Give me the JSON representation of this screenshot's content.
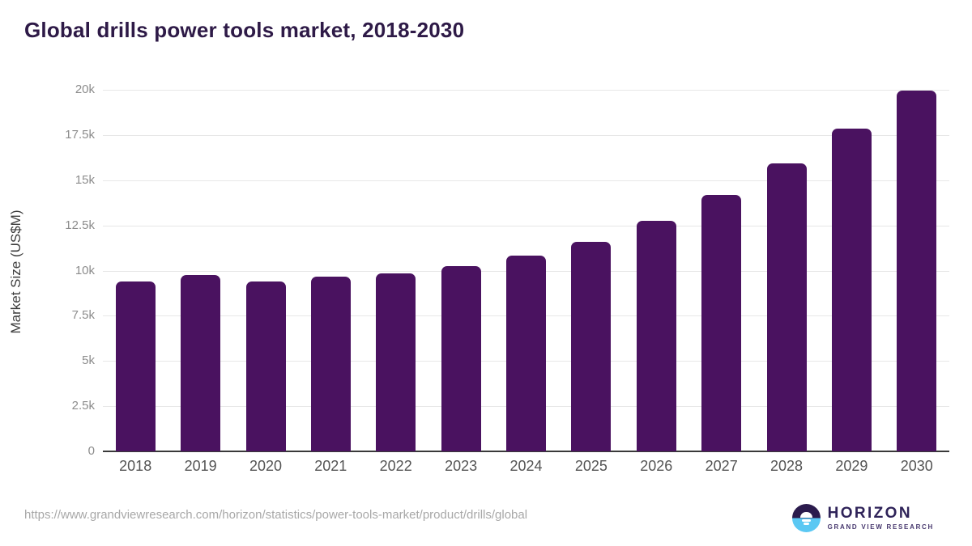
{
  "page": {
    "title": "Global drills power tools market, 2018-2030"
  },
  "chart_data": {
    "type": "bar",
    "title": "Global drills power tools market, 2018-2030",
    "xlabel": "",
    "ylabel": "Market Size (US$M)",
    "categories": [
      "2018",
      "2019",
      "2020",
      "2021",
      "2022",
      "2023",
      "2024",
      "2025",
      "2026",
      "2027",
      "2028",
      "2029",
      "2030"
    ],
    "values": [
      9400,
      9750,
      9400,
      9650,
      9850,
      10250,
      10850,
      11600,
      12750,
      14200,
      15950,
      17850,
      19950
    ],
    "ylim": [
      0,
      20000
    ],
    "yticks": [
      0,
      2500,
      5000,
      7500,
      10000,
      12500,
      15000,
      17500,
      20000
    ],
    "ytick_labels": [
      "0",
      "2.5k",
      "5k",
      "7.5k",
      "10k",
      "12.5k",
      "15k",
      "17.5k",
      "20k"
    ],
    "grid": true,
    "legend": false,
    "bar_color": "#4A1260"
  },
  "footer": {
    "source_url": "https://www.grandviewresearch.com/horizon/statistics/power-tools-market/product/drills/global",
    "logo": {
      "brand": "HORIZON",
      "subtext": "GRAND VIEW RESEARCH"
    }
  },
  "colors": {
    "title_text": "#2E1A47",
    "bar": "#4A1260",
    "gridline": "#E7E7E7",
    "axis_line": "#3A3A3A",
    "ytick_label": "#8C8C8C",
    "xtick_label": "#545454",
    "source_url": "#A8A8A8",
    "logo_purple": "#2F2359",
    "logo_blue": "#5BC8F3"
  }
}
